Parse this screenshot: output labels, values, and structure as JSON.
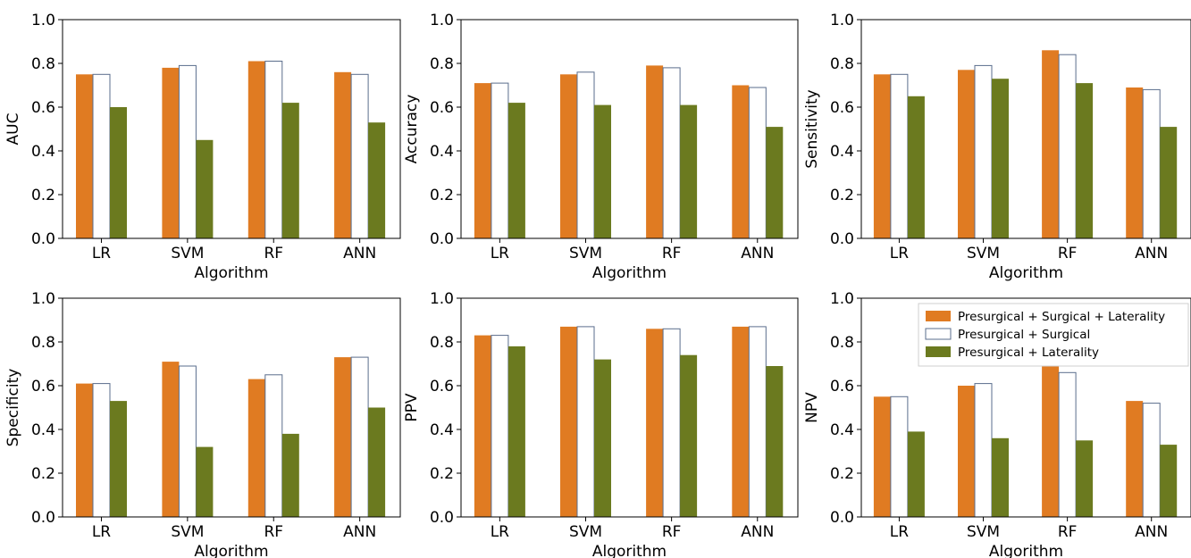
{
  "colors": {
    "Presurgical + Surgical + Laterality": "#e07b22",
    "Presurgical + Surgical": "#ffffff",
    "Presurgical + Laterality": "#6b7a1f"
  },
  "legend": {
    "location": "upper-right of NPV panel",
    "entries": [
      "Presurgical + Surgical + Laterality",
      "Presurgical + Surgical",
      "Presurgical + Laterality"
    ]
  },
  "chart_data": [
    {
      "type": "bar",
      "ylabel": "AUC",
      "xlabel": "Algorithm",
      "categories": [
        "LR",
        "SVM",
        "RF",
        "ANN"
      ],
      "ylim": [
        0,
        1.0
      ],
      "yticks": [
        "0.0",
        "0.2",
        "0.4",
        "0.6",
        "0.8",
        "1.0"
      ],
      "series": [
        {
          "name": "Presurgical + Surgical + Laterality",
          "values": [
            0.75,
            0.78,
            0.81,
            0.76
          ]
        },
        {
          "name": "Presurgical + Surgical",
          "values": [
            0.75,
            0.79,
            0.81,
            0.75
          ]
        },
        {
          "name": "Presurgical + Laterality",
          "values": [
            0.6,
            0.45,
            0.62,
            0.53
          ]
        }
      ]
    },
    {
      "type": "bar",
      "ylabel": "Accuracy",
      "xlabel": "Algorithm",
      "categories": [
        "LR",
        "SVM",
        "RF",
        "ANN"
      ],
      "ylim": [
        0,
        1.0
      ],
      "yticks": [
        "0.0",
        "0.2",
        "0.4",
        "0.6",
        "0.8",
        "1.0"
      ],
      "series": [
        {
          "name": "Presurgical + Surgical + Laterality",
          "values": [
            0.71,
            0.75,
            0.79,
            0.7
          ]
        },
        {
          "name": "Presurgical + Surgical",
          "values": [
            0.71,
            0.76,
            0.78,
            0.69
          ]
        },
        {
          "name": "Presurgical + Laterality",
          "values": [
            0.62,
            0.61,
            0.61,
            0.51
          ]
        }
      ]
    },
    {
      "type": "bar",
      "ylabel": "Sensitivity",
      "xlabel": "Algorithm",
      "categories": [
        "LR",
        "SVM",
        "RF",
        "ANN"
      ],
      "ylim": [
        0,
        1.0
      ],
      "yticks": [
        "0.0",
        "0.2",
        "0.4",
        "0.6",
        "0.8",
        "1.0"
      ],
      "series": [
        {
          "name": "Presurgical + Surgical + Laterality",
          "values": [
            0.75,
            0.77,
            0.86,
            0.69
          ]
        },
        {
          "name": "Presurgical + Surgical",
          "values": [
            0.75,
            0.79,
            0.84,
            0.68
          ]
        },
        {
          "name": "Presurgical + Laterality",
          "values": [
            0.65,
            0.73,
            0.71,
            0.51
          ]
        }
      ]
    },
    {
      "type": "bar",
      "ylabel": "Specificity",
      "xlabel": "Algorithm",
      "categories": [
        "LR",
        "SVM",
        "RF",
        "ANN"
      ],
      "ylim": [
        0,
        1.0
      ],
      "yticks": [
        "0.0",
        "0.2",
        "0.4",
        "0.6",
        "0.8",
        "1.0"
      ],
      "series": [
        {
          "name": "Presurgical + Surgical + Laterality",
          "values": [
            0.61,
            0.71,
            0.63,
            0.73
          ]
        },
        {
          "name": "Presurgical + Surgical",
          "values": [
            0.61,
            0.69,
            0.65,
            0.73
          ]
        },
        {
          "name": "Presurgical + Laterality",
          "values": [
            0.53,
            0.32,
            0.38,
            0.5
          ]
        }
      ]
    },
    {
      "type": "bar",
      "ylabel": "PPV",
      "xlabel": "Algorithm",
      "categories": [
        "LR",
        "SVM",
        "RF",
        "ANN"
      ],
      "ylim": [
        0,
        1.0
      ],
      "yticks": [
        "0.0",
        "0.2",
        "0.4",
        "0.6",
        "0.8",
        "1.0"
      ],
      "series": [
        {
          "name": "Presurgical + Surgical + Laterality",
          "values": [
            0.83,
            0.87,
            0.86,
            0.87
          ]
        },
        {
          "name": "Presurgical + Surgical",
          "values": [
            0.83,
            0.87,
            0.86,
            0.87
          ]
        },
        {
          "name": "Presurgical + Laterality",
          "values": [
            0.78,
            0.72,
            0.74,
            0.69
          ]
        }
      ]
    },
    {
      "type": "bar",
      "ylabel": "NPV",
      "xlabel": "Algorithm",
      "categories": [
        "LR",
        "SVM",
        "RF",
        "ANN"
      ],
      "ylim": [
        0,
        1.0
      ],
      "yticks": [
        "0.0",
        "0.2",
        "0.4",
        "0.6",
        "0.8",
        "1.0"
      ],
      "series": [
        {
          "name": "Presurgical + Surgical + Laterality",
          "values": [
            0.55,
            0.6,
            0.7,
            0.53
          ]
        },
        {
          "name": "Presurgical + Surgical",
          "values": [
            0.55,
            0.61,
            0.66,
            0.52
          ]
        },
        {
          "name": "Presurgical + Laterality",
          "values": [
            0.39,
            0.36,
            0.35,
            0.33
          ]
        }
      ]
    }
  ]
}
